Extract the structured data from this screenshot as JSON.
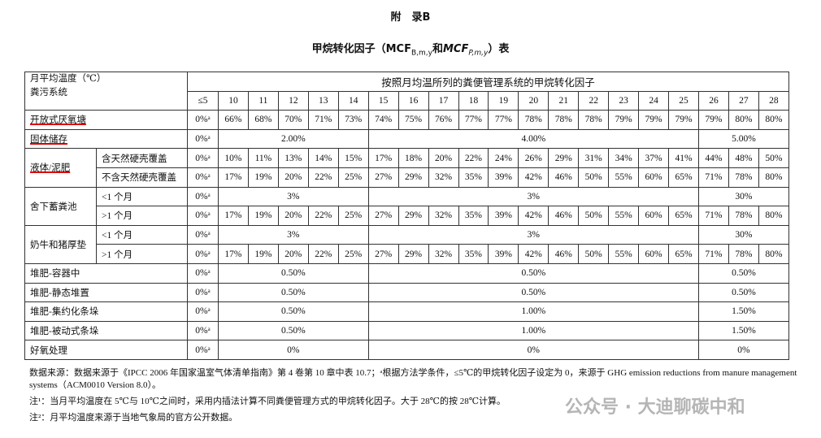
{
  "appendix": "附　录B",
  "title": [
    "甲烷转化因子（MCF",
    "B,m,y",
    "和",
    "MCF",
    "P,m,y",
    "）表"
  ],
  "table": {
    "corner": [
      "月平均温度（℃）",
      "粪污系统"
    ],
    "span_header": "按照月均温所列的粪便管理系统的甲烷转化因子",
    "temps": [
      "≤5",
      "10",
      "11",
      "12",
      "13",
      "14",
      "15",
      "16",
      "17",
      "18",
      "19",
      "20",
      "21",
      "22",
      "23",
      "24",
      "25",
      "26",
      "27",
      "28"
    ],
    "groups": [
      {
        "label": "开放式厌氧塘",
        "rows": [
          {
            "cells": [
              "0%ᵃ",
              "66%",
              "68%",
              "70%",
              "71%",
              "73%",
              "74%",
              "75%",
              "76%",
              "77%",
              "77%",
              "78%",
              "78%",
              "78%",
              "79%",
              "79%",
              "79%",
              "79%",
              "80%",
              "80%"
            ]
          }
        ]
      },
      {
        "label": "固体储存",
        "rows": [
          {
            "cells": [
              "0%ᵃ",
              "2.00%",
              "4.00%",
              "5.00%"
            ]
          }
        ]
      },
      {
        "label": "液体/泥肥",
        "rows": [
          {
            "sub": "含天然硬壳覆盖",
            "cells": [
              "0%ᵃ",
              "10%",
              "11%",
              "13%",
              "14%",
              "15%",
              "17%",
              "18%",
              "20%",
              "22%",
              "24%",
              "26%",
              "29%",
              "31%",
              "34%",
              "37%",
              "41%",
              "44%",
              "48%",
              "50%"
            ]
          },
          {
            "sub": "不含天然硬壳覆盖",
            "cells": [
              "0%ᵃ",
              "17%",
              "19%",
              "20%",
              "22%",
              "25%",
              "27%",
              "29%",
              "32%",
              "35%",
              "39%",
              "42%",
              "46%",
              "50%",
              "55%",
              "60%",
              "65%",
              "71%",
              "78%",
              "80%"
            ]
          }
        ]
      },
      {
        "label": "舍下蓄粪池",
        "rows": [
          {
            "sub": "<1 个月",
            "cells": [
              "0%ᵃ",
              "3%",
              "3%",
              "30%"
            ]
          },
          {
            "sub": ">1 个月",
            "cells": [
              "0%ᵃ",
              "17%",
              "19%",
              "20%",
              "22%",
              "25%",
              "27%",
              "29%",
              "32%",
              "35%",
              "39%",
              "42%",
              "46%",
              "50%",
              "55%",
              "60%",
              "65%",
              "71%",
              "78%",
              "80%"
            ]
          }
        ]
      },
      {
        "label": "奶牛和猪厚垫",
        "rows": [
          {
            "sub": "<1 个月",
            "cells": [
              "0%ᵃ",
              "3%",
              "3%",
              "30%"
            ]
          },
          {
            "sub": ">1 个月",
            "cells": [
              "0%ᵃ",
              "17%",
              "19%",
              "20%",
              "22%",
              "25%",
              "27%",
              "29%",
              "32%",
              "35%",
              "39%",
              "42%",
              "46%",
              "50%",
              "55%",
              "60%",
              "65%",
              "71%",
              "78%",
              "80%"
            ]
          }
        ]
      },
      {
        "label": "堆肥-容器中",
        "rows": [
          {
            "cells": [
              "0%ᵃ",
              "0.50%",
              "0.50%",
              "0.50%"
            ]
          }
        ]
      },
      {
        "label": "堆肥-静态堆置",
        "rows": [
          {
            "cells": [
              "0%ᵃ",
              "0.50%",
              "0.50%",
              "0.50%"
            ]
          }
        ]
      },
      {
        "label": "堆肥-集约化条垛",
        "rows": [
          {
            "cells": [
              "0%ᵃ",
              "0.50%",
              "1.00%",
              "1.50%"
            ]
          }
        ]
      },
      {
        "label": "堆肥-被动式条垛",
        "rows": [
          {
            "cells": [
              "0%ᵃ",
              "0.50%",
              "1.00%",
              "1.50%"
            ]
          }
        ]
      },
      {
        "label": "好氧处理",
        "rows": [
          {
            "cells": [
              "0%ᵃ",
              "0%",
              "0%",
              "0%"
            ]
          }
        ]
      }
    ]
  },
  "notes": [
    "数据来源：数据来源于《IPCC 2006 年国家温室气体清单指南》第 4 卷第 10 章中表 10.7；ᵃ根据方法学条件，≤5℃的甲烷转化因子设定为 0，来源于 GHG emission reductions from manure management systems（ACM0010 Version 8.0）。",
    "注¹：当月平均温度在 5℃与 10℃之间时，采用内插法计算不同粪便管理方式的甲烷转化因子。大于 28℃的按 28℃计算。",
    "注²：月平均温度来源于当地气象局的官方公开数据。"
  ],
  "watermark": "公众号 · 大迪聊碳中和"
}
